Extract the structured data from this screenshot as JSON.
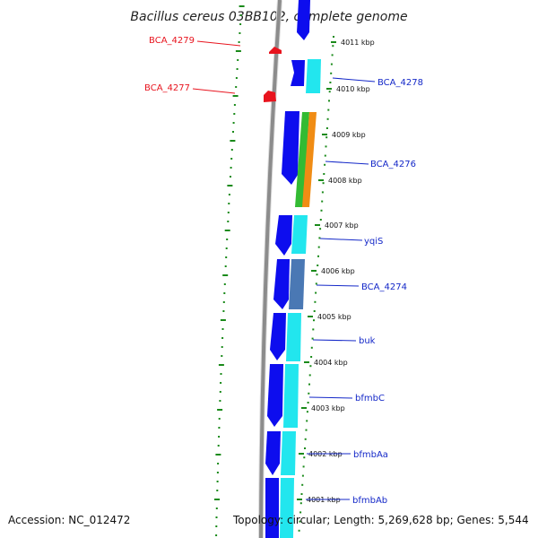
{
  "title": "Bacillus cereus 03BB102, complete genome",
  "accession": "Accession: NC_012472",
  "topology": "Topology: circular; Length: 5,269,628 bp; Genes: 5,544",
  "ticks": [
    "4011 kbp",
    "4010 kbp",
    "4009 kbp",
    "4008 kbp",
    "4007 kbp",
    "4006 kbp",
    "4005 kbp",
    "4004 kbp",
    "4003 kbp",
    "4002 kbp",
    "4001 kbp"
  ],
  "genes_reverse": [
    {
      "name": "BCA_4279",
      "color": "#e8141e"
    },
    {
      "name": "BCA_4277",
      "color": "#e8141e"
    }
  ],
  "genes_forward": [
    {
      "name": "BCA_4278",
      "color": "#1428c8"
    },
    {
      "name": "BCA_4276",
      "color": "#1428c8"
    },
    {
      "name": "yqiS",
      "color": "#1428c8"
    },
    {
      "name": "BCA_4274",
      "color": "#1428c8"
    },
    {
      "name": "buk",
      "color": "#1428c8"
    },
    {
      "name": "bfmbC",
      "color": "#1428c8"
    },
    {
      "name": "bfmbAa",
      "color": "#1428c8"
    },
    {
      "name": "bfmbAb",
      "color": "#1428c8"
    }
  ],
  "colors": {
    "cds_blue": "#0d0dee",
    "cds_cyan": "#22e6ee",
    "cds_steel": "#4a78b4",
    "cds_green": "#33bb33",
    "cds_orange": "#f08c14",
    "backbone": "#8c8c8c",
    "tick_green": "#1a8a1a"
  }
}
